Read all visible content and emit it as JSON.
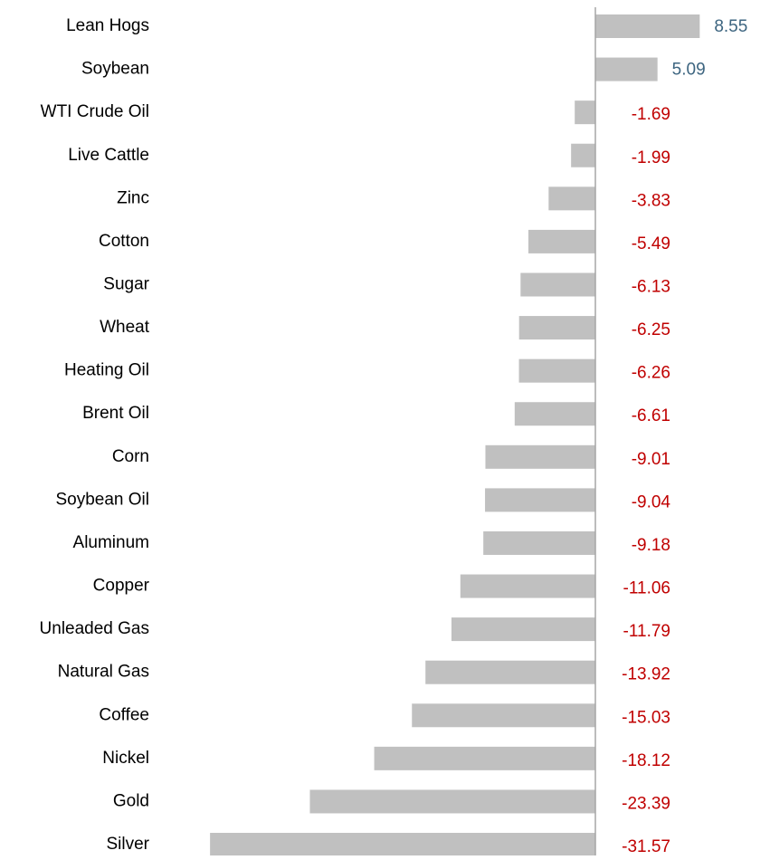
{
  "chart_data": {
    "type": "bar",
    "orientation": "horizontal",
    "categories": [
      "Lean Hogs",
      "Soybean",
      "WTI Crude Oil",
      "Live Cattle",
      "Zinc",
      "Cotton",
      "Sugar",
      "Wheat",
      "Heating Oil",
      "Brent Oil",
      "Corn",
      "Soybean Oil",
      "Aluminum",
      "Copper",
      "Unleaded Gas",
      "Natural Gas",
      "Coffee",
      "Nickel",
      "Gold",
      "Silver"
    ],
    "values": [
      8.55,
      5.09,
      -1.69,
      -1.99,
      -3.83,
      -5.49,
      -6.13,
      -6.25,
      -6.26,
      -6.61,
      -9.01,
      -9.04,
      -9.18,
      -11.06,
      -11.79,
      -13.92,
      -15.03,
      -18.12,
      -23.39,
      -31.57
    ],
    "color": "#c0c0c0",
    "positive_label_color": "#3d6580",
    "negative_label_color": "#c00000"
  }
}
